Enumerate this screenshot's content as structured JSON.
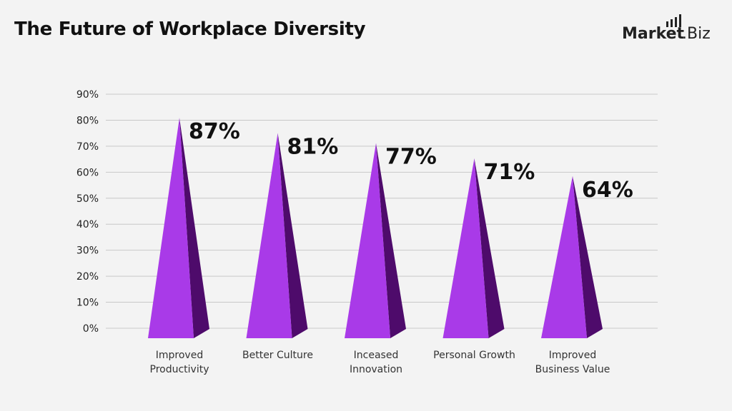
{
  "header": {
    "title": "The Future of Workplace Diversity",
    "logo": "Market.Biz"
  },
  "chart_data": {
    "type": "bar",
    "style": "3d-pyramid",
    "title": "The Future of Workplace Diversity",
    "categories": [
      [
        "Improved",
        "Productivity"
      ],
      [
        "Better Culture"
      ],
      [
        "Inceased",
        "Innovation"
      ],
      [
        "Personal Growth"
      ],
      [
        "Improved",
        "Business Value"
      ]
    ],
    "values": [
      87,
      81,
      77,
      71,
      64
    ],
    "data_labels": [
      "87%",
      "81%",
      "77%",
      "71%",
      "64%"
    ],
    "y_ticks": [
      "0%",
      "10%",
      "20%",
      "30%",
      "40%",
      "50%",
      "60%",
      "70%",
      "80%",
      "90%"
    ],
    "ylim": [
      0,
      90
    ],
    "grid": true,
    "colors": {
      "front": "#a93ae8",
      "side": "#4e0b6b",
      "grid": "#c8c8c8",
      "text": "#222222"
    }
  }
}
